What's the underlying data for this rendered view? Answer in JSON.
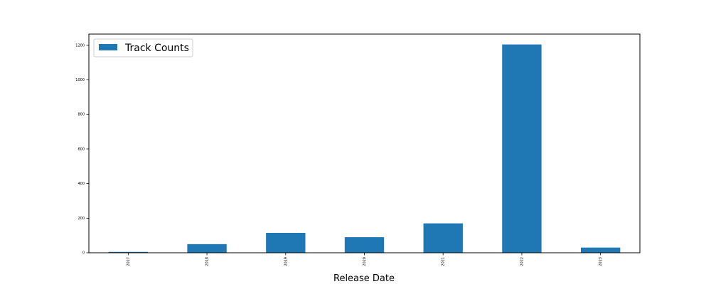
{
  "chart_data": {
    "type": "bar",
    "categories": [
      "2017",
      "2018",
      "2019",
      "2020",
      "2021",
      "2022",
      "2023"
    ],
    "series": [
      {
        "name": "Track Counts",
        "values": [
          5,
          50,
          115,
          90,
          170,
          1205,
          30
        ],
        "color": "#1f77b4"
      }
    ],
    "xlabel": "Release Date",
    "ylabel": "",
    "ylim": [
      0,
      1265
    ],
    "yticks": [
      0,
      200,
      400,
      600,
      800,
      1000,
      1200
    ],
    "grid": false,
    "legend": "top-left"
  }
}
